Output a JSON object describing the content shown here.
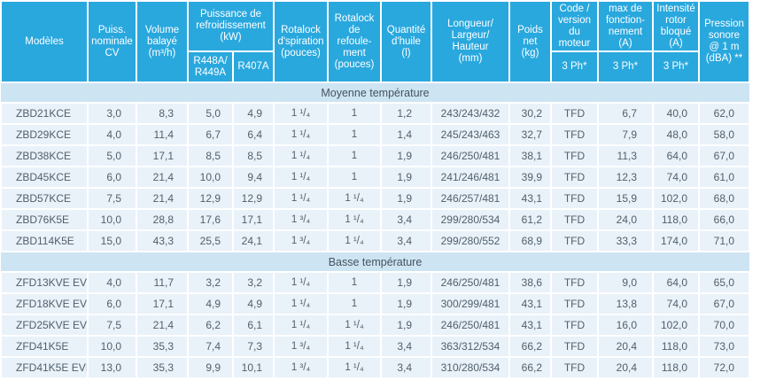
{
  "table": {
    "header": {
      "modeles": "Modèles",
      "puissance_nominale": "Puiss.\nnominale\nCV",
      "volume_balaye": "Volume\nbalayé\n(m³/h)",
      "refroidissement_group": "Puissance de\nrefroidissement\n(kW)",
      "refrigerant_1": "R448A/\nR449A",
      "refrigerant_2": "R407A",
      "rotalock_aspiration": "Rotalock\nd'spiration\n(pouces)",
      "rotalock_refoulement": "Rotalock\nde\nrefoule-\nment\n(pouces)",
      "quantite_huile": "Quantité\nd'huile\n(l)",
      "dimensions": "Longueur/\nLargeur/\nHauteur\n(mm)",
      "poids_net": "Poids\nnet\n(kg)",
      "code_moteur": "Code /\nversion\ndu\nmoteur",
      "intensite_max": "max de\nfonction-\nnement\n(A)",
      "intensite_rotor": "Intensité\nrotor\nbloqué\n(A)",
      "pression_sonore": "Pression\nsonore\n@ 1 m\n(dBA) **",
      "phase_1": "3 Ph*",
      "phase_2": "3 Ph*",
      "phase_3": "3 Ph*"
    },
    "col_names": [
      "model",
      "puissance-nominale",
      "volume-balaye",
      "refroidissement-r448a-r449a",
      "refroidissement-r407a",
      "rotalock-aspiration",
      "rotalock-refoulement",
      "quantite-huile",
      "dimensions",
      "poids-net",
      "code-moteur",
      "intensite-max",
      "intensite-rotor-bloque",
      "pression-sonore"
    ],
    "sections": [
      {
        "title": "Moyenne température",
        "rows": [
          [
            "ZBD21KCE",
            "3,0",
            "8,3",
            "5,0",
            "4,9",
            "1 ¹/₄",
            "1",
            "1,2",
            "243/243/432",
            "30,2",
            "TFD",
            "6,7",
            "40,0",
            "62,0"
          ],
          [
            "ZBD29KCE",
            "4,0",
            "11,4",
            "6,7",
            "6,4",
            "1 ¹/₄",
            "1",
            "1,4",
            "245/243/463",
            "32,7",
            "TFD",
            "7,9",
            "48,0",
            "58,0"
          ],
          [
            "ZBD38KCE",
            "5,0",
            "17,1",
            "8,5",
            "8,5",
            "1 ¹/₄",
            "1",
            "1,9",
            "246/250/481",
            "38,1",
            "TFD",
            "11,3",
            "64,0",
            "67,0"
          ],
          [
            "ZBD45KCE",
            "6,0",
            "21,4",
            "10,0",
            "9,4",
            "1 ¹/₄",
            "1",
            "1,9",
            "241/246/481",
            "39,9",
            "TFD",
            "12,3",
            "74,0",
            "61,0"
          ],
          [
            "ZBD57KCE",
            "7,5",
            "21,4",
            "12,9",
            "12,9",
            "1 ¹/₄",
            "1 ¹/₄",
            "1,9",
            "246/257/481",
            "43,1",
            "TFD",
            "15,9",
            "102,0",
            "68,0"
          ],
          [
            "ZBD76K5E",
            "10,0",
            "28,8",
            "17,6",
            "17,1",
            "1 ³/₄",
            "1 ¹/₄",
            "3,4",
            "299/280/534",
            "61,2",
            "TFD",
            "24,0",
            "118,0",
            "66,0"
          ],
          [
            "ZBD114K5E",
            "15,0",
            "43,3",
            "25,5",
            "24,1",
            "1 ³/₄",
            "1 ¹/₄",
            "3,4",
            "299/280/552",
            "68,9",
            "TFD",
            "33,3",
            "174,0",
            "71,0"
          ]
        ]
      },
      {
        "title": "Basse température",
        "rows": [
          [
            "ZFD13KVE EVI",
            "4,0",
            "11,7",
            "3,2",
            "3,2",
            "1 ¹/₄",
            "1",
            "1,9",
            "246/250/481",
            "38,6",
            "TFD",
            "9,0",
            "64,0",
            "65,0"
          ],
          [
            "ZFD18KVE EVI",
            "6,0",
            "17,1",
            "4,9",
            "4,9",
            "1 ¹/₄",
            "1",
            "1,9",
            "300/299/481",
            "43,1",
            "TFD",
            "13,8",
            "74,0",
            "67,0"
          ],
          [
            "ZFD25KVE EVI",
            "7,5",
            "21,4",
            "6,2",
            "6,1",
            "1 ¹/₄",
            "1 ¹/₄",
            "1,9",
            "246/250/481",
            "43,1",
            "TFD",
            "16,0",
            "102,0",
            "70,0"
          ],
          [
            "ZFD41K5E",
            "10,0",
            "35,3",
            "7,4",
            "7,3",
            "1 ³/₄",
            "1 ¹/₄",
            "3,4",
            "363/312/534",
            "66,2",
            "TFD",
            "20,4",
            "118,0",
            "73,0"
          ],
          [
            "ZFD41K5E EVI",
            "13,0",
            "35,3",
            "9,9",
            "10,1",
            "1 ³/₄",
            "1 ¹/₄",
            "3,4",
            "310/280/534",
            "66,2",
            "TFD",
            "20,4",
            "118,0",
            "72,0"
          ]
        ]
      }
    ],
    "colors": {
      "header_blue": "#29a8de",
      "section_band": "#cde4f3",
      "row_background": "#e9f1f9",
      "separator": "#ffffff",
      "body_text": "#50606b"
    }
  }
}
